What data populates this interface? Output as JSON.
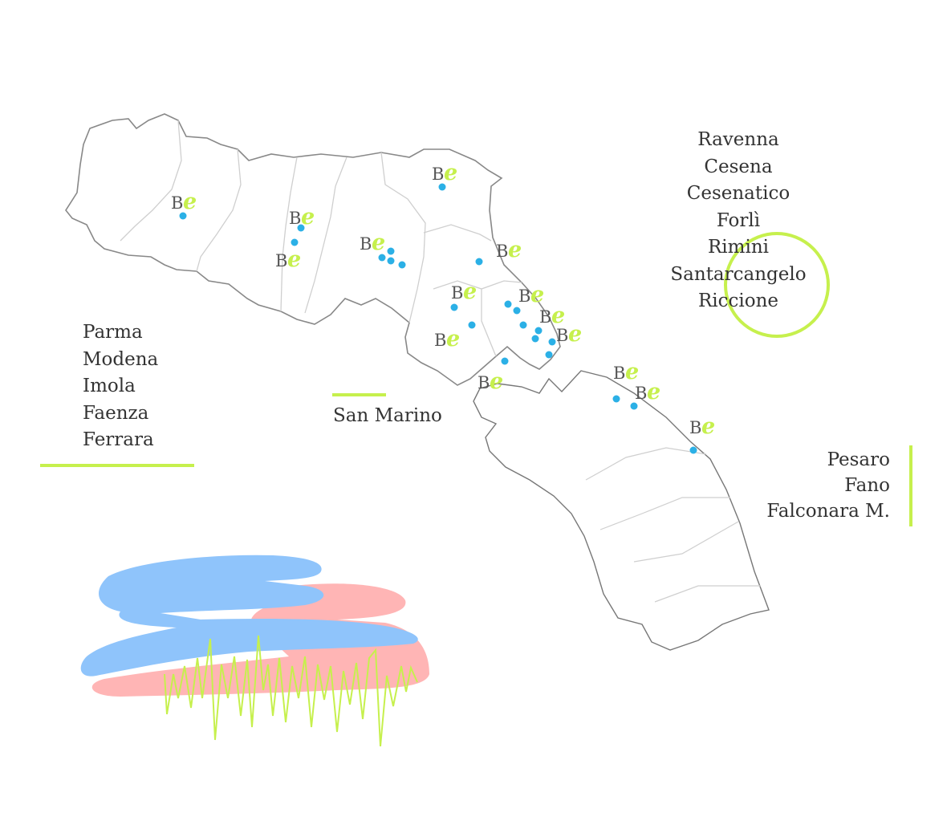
{
  "colors": {
    "accent": "#c6f04d",
    "marker": "#2bb0e6",
    "text": "#333333",
    "border": "#777777",
    "brush_blue": "#8fc4fb",
    "brush_pink": "#ffb5b5"
  },
  "lists": {
    "emilia": [
      "Parma",
      "Modena",
      "Imola",
      "Faenza",
      "Ferrara"
    ],
    "romagna": [
      "Ravenna",
      "Cesena",
      "Cesenatico",
      "Forlì",
      "Rimini",
      "Santarcangelo",
      "Riccione"
    ],
    "marche": [
      "Pesaro",
      "Fano",
      "Falconara M."
    ],
    "san_marino": "San Marino"
  },
  "logo": {
    "letter": "B",
    "letter2": "e"
  }
}
